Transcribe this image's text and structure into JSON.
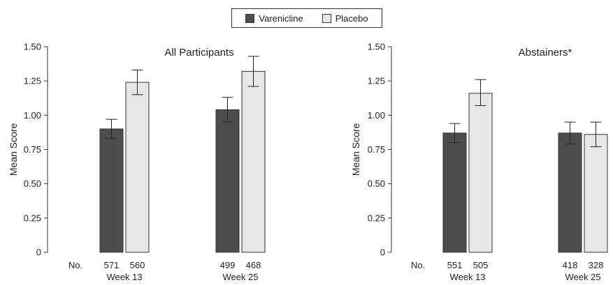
{
  "legend": {
    "varenicline_label": "Varenicline",
    "placebo_label": "Placebo"
  },
  "colors": {
    "varenicline": "#4d4d4f",
    "placebo": "#e6e6e6",
    "axis": "#333333"
  },
  "chart_data": [
    {
      "type": "bar",
      "title": "All Participants",
      "ylabel": "Mean Score",
      "xlabel": "",
      "ylim": [
        0,
        1.5
      ],
      "yticks": [
        "0",
        "0.25",
        "0.50",
        "0.75",
        "1.00",
        "1.25",
        "1.50"
      ],
      "n_label": "No.",
      "categories": [
        "Week 13",
        "Week 25"
      ],
      "series": [
        {
          "name": "Varenicline",
          "values": [
            0.9,
            1.04
          ],
          "error_low": [
            0.83,
            0.95
          ],
          "error_high": [
            0.97,
            1.13
          ],
          "n": [
            "571",
            "499"
          ]
        },
        {
          "name": "Placebo",
          "values": [
            1.24,
            1.32
          ],
          "error_low": [
            1.15,
            1.21
          ],
          "error_high": [
            1.33,
            1.43
          ],
          "n": [
            "560",
            "468"
          ]
        }
      ]
    },
    {
      "type": "bar",
      "title": "Abstainers*",
      "ylabel": "Mean Score",
      "xlabel": "",
      "ylim": [
        0,
        1.5
      ],
      "yticks": [
        "0",
        "0.25",
        "0.50",
        "0.75",
        "1.00",
        "1.25",
        "1.50"
      ],
      "n_label": "No.",
      "categories": [
        "Week 13",
        "Week 25"
      ],
      "series": [
        {
          "name": "Varenicline",
          "values": [
            0.87,
            0.87
          ],
          "error_low": [
            0.8,
            0.79
          ],
          "error_high": [
            0.94,
            0.95
          ],
          "n": [
            "551",
            "418"
          ]
        },
        {
          "name": "Placebo",
          "values": [
            1.16,
            0.86
          ],
          "error_low": [
            1.07,
            0.77
          ],
          "error_high": [
            1.26,
            0.95
          ],
          "n": [
            "505",
            "328"
          ]
        }
      ]
    }
  ]
}
